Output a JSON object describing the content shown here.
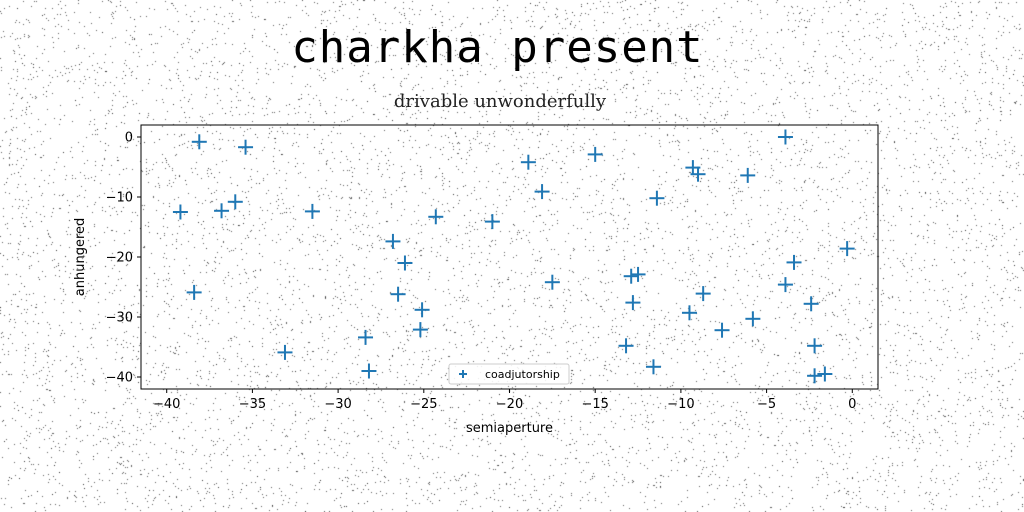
{
  "chart_data": {
    "type": "scatter",
    "title": "charkha present",
    "subtitle": "drivable unwonderfully",
    "xlabel": "semiaperture",
    "ylabel": "anhungered",
    "xlim": [
      -41.5,
      1.5
    ],
    "ylim": [
      -42,
      2
    ],
    "xticks": [
      -40,
      -35,
      -30,
      -25,
      -20,
      -15,
      -10,
      -5,
      0
    ],
    "yticks": [
      0,
      -10,
      -20,
      -30,
      -40
    ],
    "grid": false,
    "legend_position": "lower-center",
    "marker": "plus",
    "series": [
      {
        "name": "coadjutorship",
        "color": "#1f77b4",
        "x": [
          -38.1,
          -35.4,
          -39.2,
          -36.8,
          -36.0,
          -38.4,
          -31.5,
          -33.1,
          -28.4,
          -28.2,
          -26.8,
          -26.1,
          -26.5,
          -25.1,
          -25.2,
          -24.3,
          -21.0,
          -18.9,
          -18.1,
          -17.5,
          -15.0,
          -13.2,
          -12.9,
          -12.5,
          -12.8,
          -11.6,
          -11.4,
          -9.5,
          -9.3,
          -9.0,
          -8.7,
          -7.6,
          -6.1,
          -5.8,
          -3.9,
          -3.9,
          -3.4,
          -2.4,
          -2.2,
          -2.2,
          -1.6,
          -0.3
        ],
        "y": [
          -0.8,
          -1.7,
          -12.5,
          -12.3,
          -10.8,
          -25.9,
          -12.4,
          -35.9,
          -33.4,
          -39.0,
          -17.4,
          -21.0,
          -26.2,
          -28.8,
          -32.1,
          -13.3,
          -14.1,
          -4.2,
          -9.1,
          -24.2,
          -2.9,
          -34.8,
          -23.2,
          -22.9,
          -27.6,
          -38.3,
          -10.2,
          -29.3,
          -5.1,
          -6.2,
          -26.1,
          -32.2,
          -6.4,
          -30.3,
          0.0,
          -24.6,
          -20.9,
          -27.8,
          -34.8,
          -39.8,
          -39.5,
          -18.6
        ]
      }
    ]
  }
}
